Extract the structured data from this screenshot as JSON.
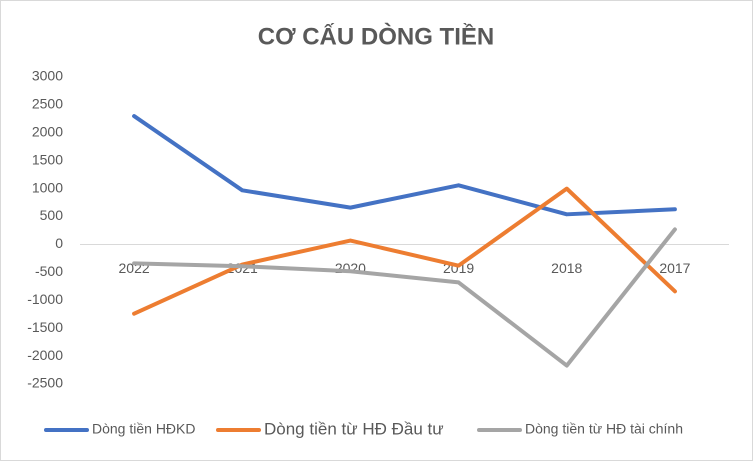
{
  "chart_data": {
    "type": "line",
    "title": "CƠ CẤU DÒNG TIỀN",
    "categories": [
      "2022",
      "2021",
      "2020",
      "2019",
      "2018",
      "2017"
    ],
    "series": [
      {
        "name": "Dòng tiền HĐKD",
        "color": "#4472c4",
        "values": [
          2300,
          970,
          660,
          1060,
          540,
          630
        ]
      },
      {
        "name": "Dòng tiền từ HĐ Đầu tư",
        "color": "#ed7d31",
        "values": [
          -1240,
          -360,
          70,
          -380,
          1000,
          -840
        ]
      },
      {
        "name": "Dòng tiền từ HĐ tài chính",
        "color": "#a5a5a5",
        "values": [
          -340,
          -390,
          -480,
          -680,
          -2170,
          270
        ]
      }
    ],
    "ylim": [
      -2500,
      3000
    ],
    "yticks": [
      -2500,
      -2000,
      -1500,
      -1000,
      -500,
      0,
      500,
      1000,
      1500,
      2000,
      2500,
      3000
    ],
    "grid": false,
    "legend": "bottom"
  }
}
